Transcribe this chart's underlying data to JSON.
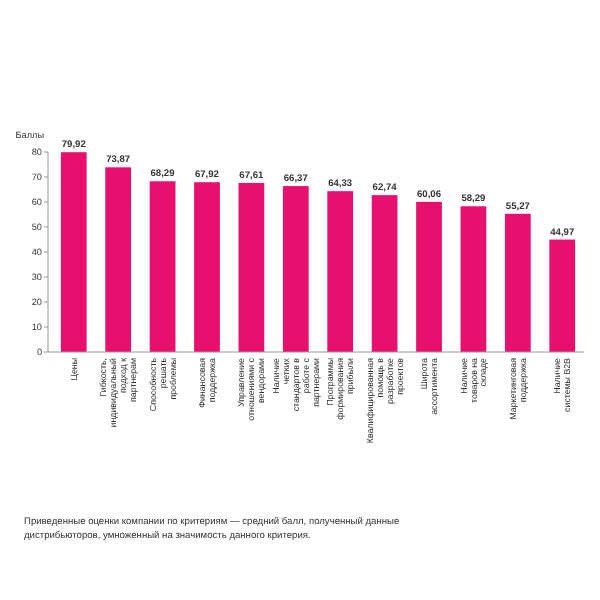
{
  "chart_data": {
    "type": "bar",
    "ylabel": "Баллы",
    "categories": [
      "Цены",
      "Гибкость, индивидуальный подход к партнерам",
      "Способность решать проблемы",
      "Финансовая поддержка",
      "Управление отношениями с вендорами",
      "Наличие четких стандартов в работе с партнерами",
      "Программы формирования прибыли",
      "Квалифицированная помощь в разработке проектов",
      "Широта ассортимента",
      "Наличие товаров на складе",
      "Маркетинговая поддержка",
      "Наличие системы B2B"
    ],
    "values": [
      79.92,
      73.87,
      68.29,
      67.92,
      67.61,
      66.37,
      64.33,
      62.74,
      60.06,
      58.29,
      55.27,
      44.97
    ],
    "value_labels": [
      "79,92",
      "73,87",
      "68,29",
      "67,92",
      "67,61",
      "66,37",
      "64,33",
      "62,74",
      "60,06",
      "58,29",
      "55,27",
      "44,97"
    ],
    "color": "#e8106e",
    "ylim": [
      0,
      80
    ],
    "yticks": [
      0,
      10,
      20,
      30,
      40,
      50,
      60,
      70,
      80
    ],
    "grid": false,
    "annotations": [
      "Приведенные оценки компании по критериям — средний балл, полученный данные дистрибьюторов, умноженный на значимость данного критерия."
    ]
  }
}
